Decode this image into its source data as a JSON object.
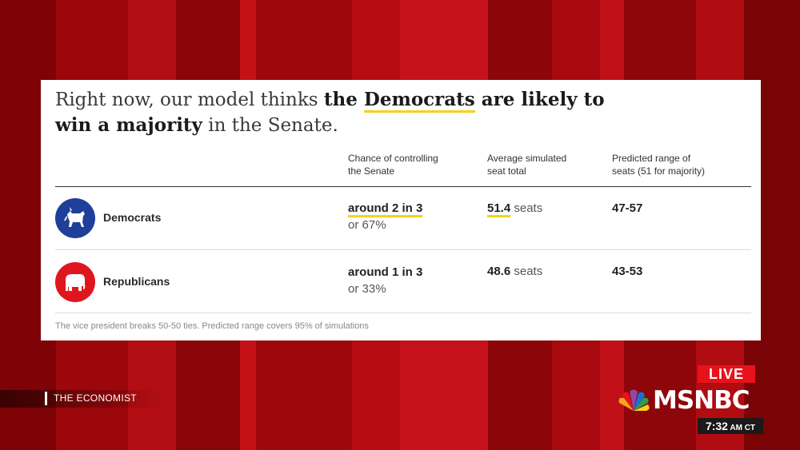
{
  "headline": {
    "prefix": "Right now, our model thinks ",
    "bold_the": "the ",
    "bold_party": "Democrats",
    "bold_rest": " are likely to win a majority",
    "suffix": " in the Senate."
  },
  "columns": {
    "chance": "Chance of controlling the Senate",
    "seats": "Average simulated seat total",
    "range": "Predicted range of seats (51 for majority)"
  },
  "rows": [
    {
      "party": "Democrats",
      "logo": "donkey-icon",
      "chance_main": "around 2 in 3",
      "chance_sub": "or 67%",
      "seats_num": "51.4",
      "seats_unit": " seats",
      "range": "47-57"
    },
    {
      "party": "Republicans",
      "logo": "elephant-icon",
      "chance_main": "around 1 in 3",
      "chance_sub": "or 33%",
      "seats_num": "48.6",
      "seats_unit": " seats",
      "range": "43-53"
    }
  ],
  "footnote": "The vice president breaks 50-50 ties. Predicted range covers 95% of simulations",
  "broadcast": {
    "source": "THE ECONOMIST",
    "live": "LIVE",
    "network": "MSNBC",
    "time": "7:32",
    "ampm": " AM CT"
  },
  "colors": {
    "democrat": "#1f3f9a",
    "republican": "#e0161e",
    "highlight": "#f5d419",
    "background_red": "#a8090d"
  }
}
